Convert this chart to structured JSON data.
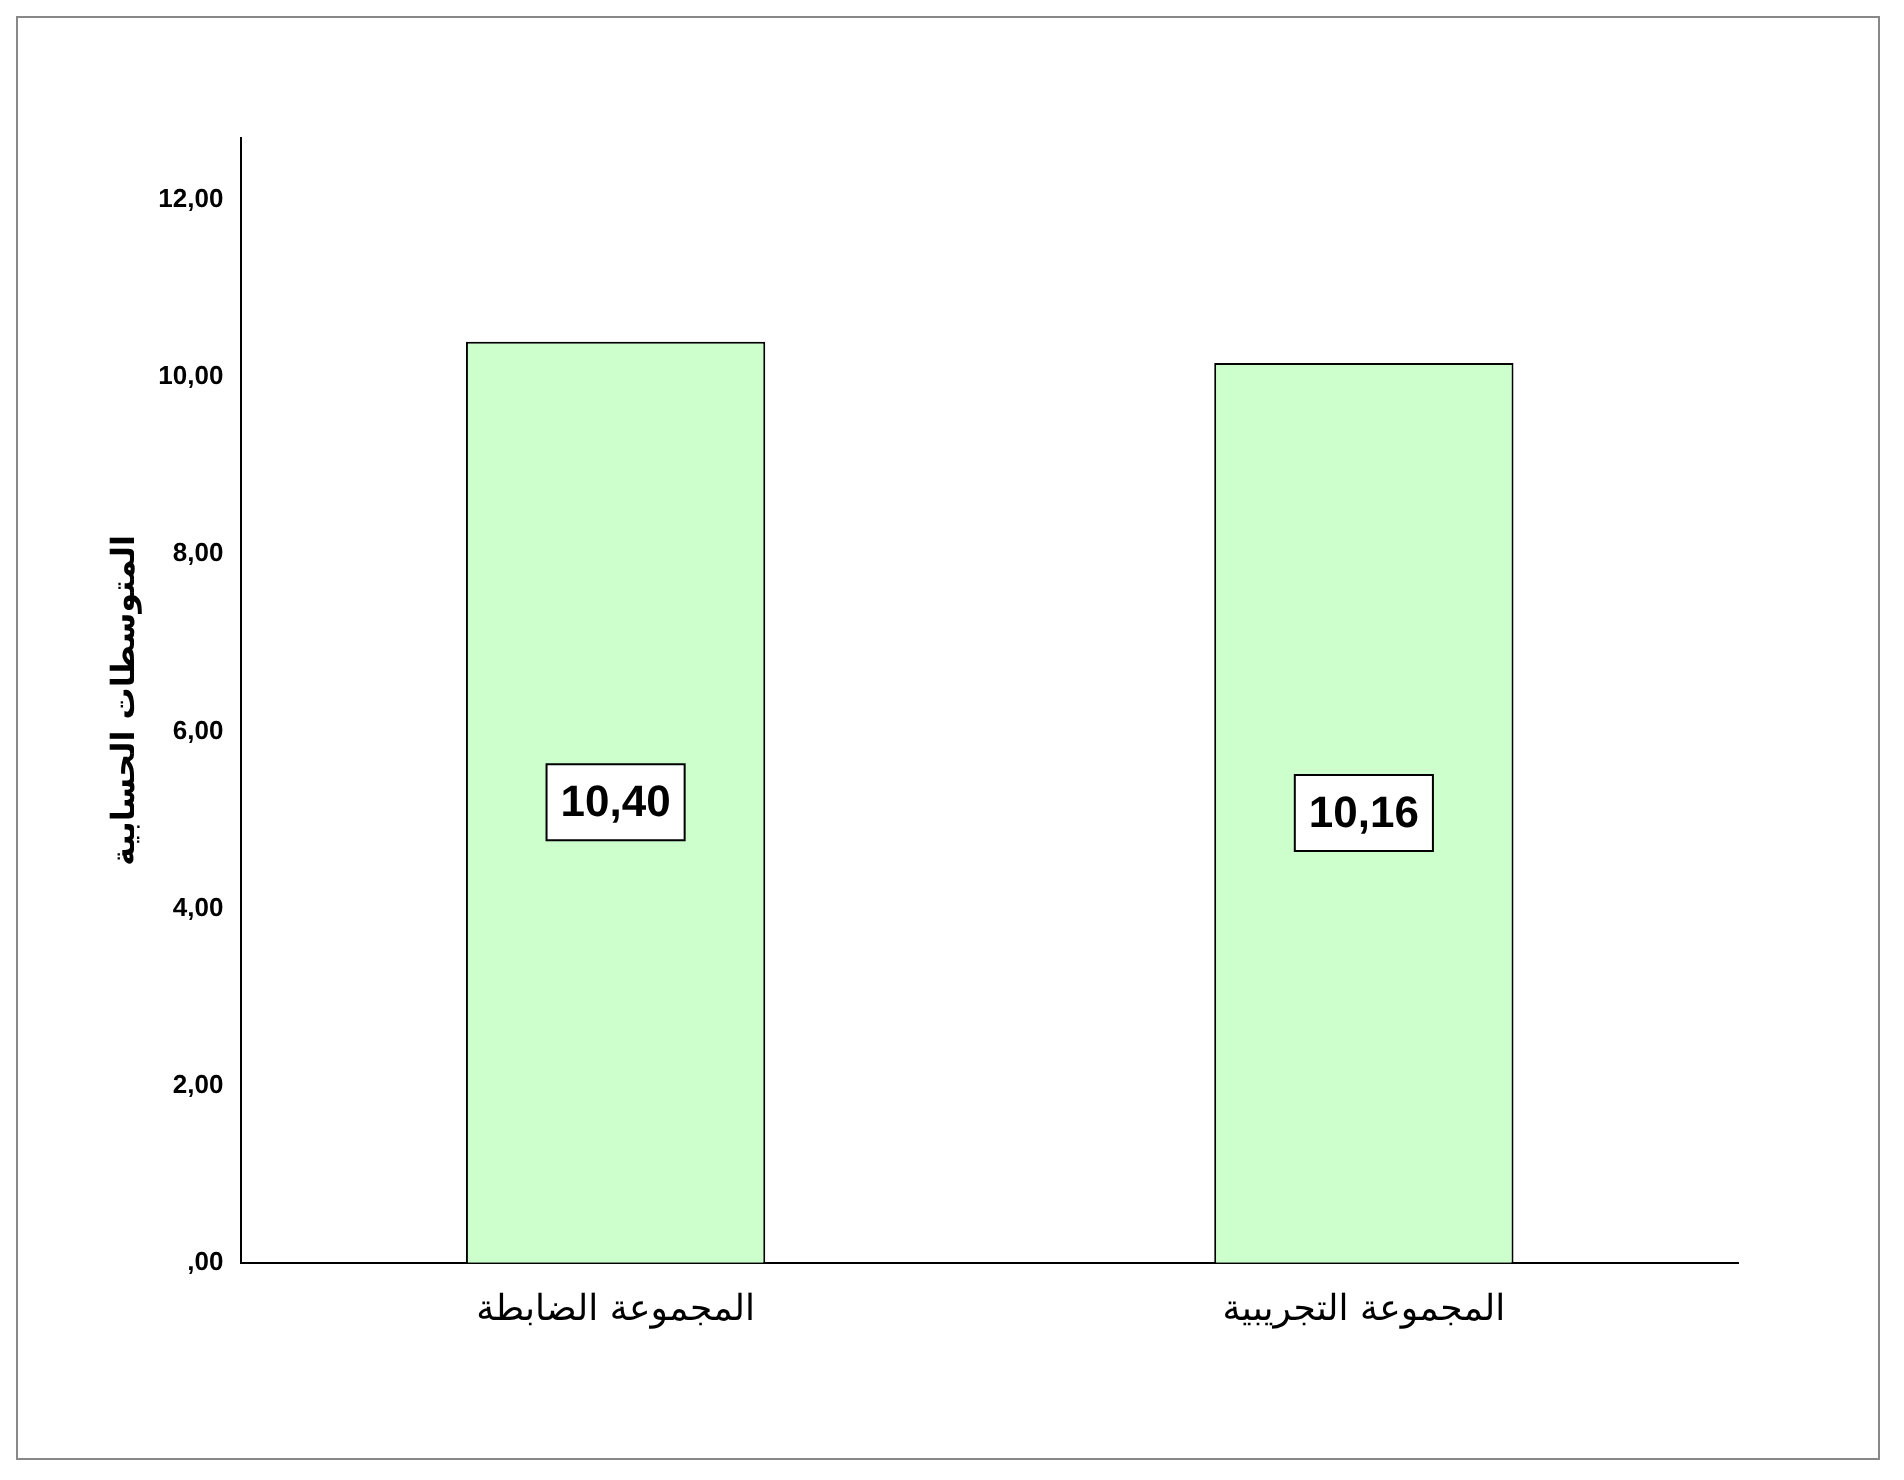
{
  "chart_data": {
    "type": "bar",
    "ylabel": "المتوسطات الحسابية",
    "categories": [
      "المجموعة الضابطة",
      "المجموعة التجريبية"
    ],
    "values": [
      10.4,
      10.16
    ],
    "value_labels": [
      "10,40",
      "10,16"
    ],
    "color": "#ccffcc",
    "ylim": [
      0,
      12.7
    ],
    "yticks": [
      {
        "value": 0,
        "label": ",00"
      },
      {
        "value": 2,
        "label": "2,00"
      },
      {
        "value": 4,
        "label": "4,00"
      },
      {
        "value": 6,
        "label": "6,00"
      },
      {
        "value": 8,
        "label": "8,00"
      },
      {
        "value": 10,
        "label": "10,00"
      },
      {
        "value": 12,
        "label": "12,00"
      }
    ],
    "grid": false,
    "legend": false
  }
}
